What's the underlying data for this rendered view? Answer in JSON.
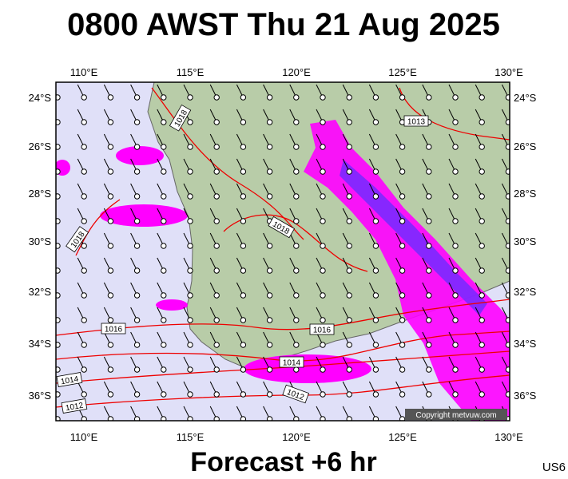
{
  "title": "0800 AWST Thu 21 Aug 2025",
  "lon_labels": [
    "110°E",
    "115°E",
    "120°E",
    "125°E",
    "130°E"
  ],
  "lat_labels": [
    "24°S",
    "26°S",
    "28°S",
    "30°S",
    "32°S",
    "34°S",
    "36°S"
  ],
  "isobar_labels": [
    "1018",
    "1013",
    "1018",
    "1018",
    "1016",
    "1016",
    "1014",
    "1014",
    "1012",
    "1012"
  ],
  "copyright": "Copyright metvuw.com",
  "footer": "Forecast +6 hr",
  "station": "US6"
}
